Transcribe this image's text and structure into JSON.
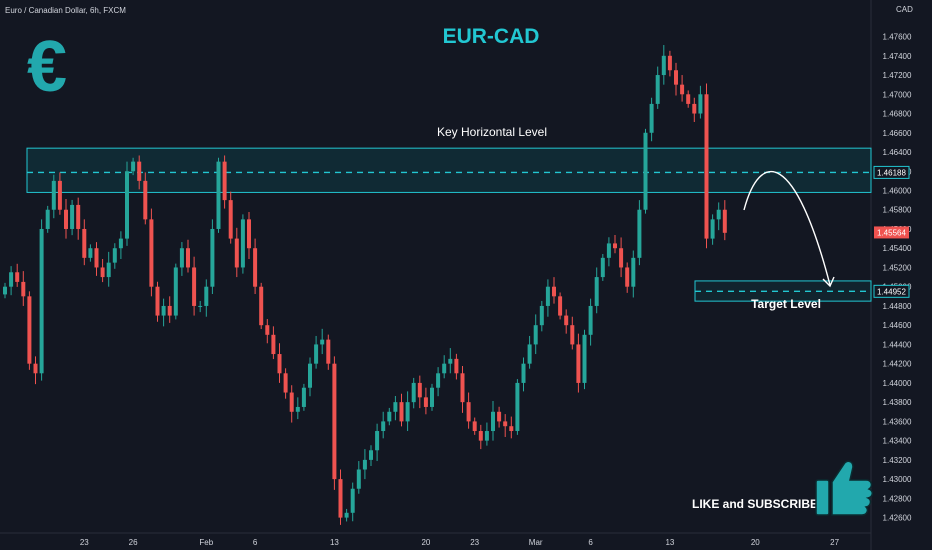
{
  "symbol_header": "Euro / Canadian Dollar, 6h, FXCM",
  "title": "EUR-CAD",
  "currency_label": "CAD",
  "logo_glyph": "€",
  "logo_icon": "euro-icon",
  "thumb_icon": "thumbs-up-icon",
  "cta_text": "LIKE and SUBSCRIBE",
  "colors": {
    "background": "#131722",
    "up": "#26a69a",
    "down": "#ef5350",
    "accent": "#22c7d2",
    "zone_fill": "#0f3b44"
  },
  "annotations": {
    "key_level_label": "Key Horizontal Level",
    "target_label": "Target Level",
    "key_level_price": 1.46188,
    "key_level_price_text": "1.46188",
    "key_zone": [
      1.4598,
      1.4644
    ],
    "target_price": 1.44952,
    "target_price_text": "1.44952",
    "target_zone": [
      1.4485,
      1.4506
    ],
    "current_price": 1.45564,
    "current_price_text": "1.45564"
  },
  "chart_data": {
    "type": "candlestick",
    "title": "EUR-CAD",
    "ylabel": "CAD",
    "ylim": [
      1.4244,
      1.4798
    ],
    "y_ticks": [
      "1.47600",
      "1.47400",
      "1.47200",
      "1.47000",
      "1.46800",
      "1.46600",
      "1.46400",
      "1.46200",
      "1.46000",
      "1.45800",
      "1.45600",
      "1.45400",
      "1.45200",
      "1.45000",
      "1.44800",
      "1.44600",
      "1.44400",
      "1.44200",
      "1.44000",
      "1.43800",
      "1.43600",
      "1.43400",
      "1.43200",
      "1.43000",
      "1.42800",
      "1.42600"
    ],
    "x_ticks": [
      "23",
      "26",
      "Feb",
      "6",
      "13",
      "20",
      "23",
      "Mar",
      "6",
      "13",
      "20",
      "27"
    ],
    "x_tick_index": [
      13,
      21,
      33,
      41,
      54,
      69,
      77,
      87,
      96,
      109,
      123,
      136
    ],
    "bars_shown": 119,
    "grid": false,
    "close_series": [
      1.45,
      1.4515,
      1.4505,
      1.449,
      1.442,
      1.441,
      1.456,
      1.458,
      1.461,
      1.458,
      1.456,
      1.4585,
      1.456,
      1.453,
      1.454,
      1.452,
      1.451,
      1.4525,
      1.454,
      1.455,
      1.462,
      1.463,
      1.461,
      1.457,
      1.45,
      1.447,
      1.448,
      1.447,
      1.452,
      1.454,
      1.452,
      1.448,
      1.448,
      1.45,
      1.456,
      1.463,
      1.459,
      1.455,
      1.452,
      1.457,
      1.454,
      1.45,
      1.446,
      1.445,
      1.443,
      1.441,
      1.439,
      1.437,
      1.4375,
      1.4395,
      1.442,
      1.444,
      1.4445,
      1.442,
      1.43,
      1.426,
      1.4265,
      1.429,
      1.431,
      1.432,
      1.433,
      1.435,
      1.436,
      1.437,
      1.438,
      1.436,
      1.438,
      1.44,
      1.4385,
      1.4375,
      1.4395,
      1.441,
      1.442,
      1.4425,
      1.441,
      1.438,
      1.436,
      1.435,
      1.434,
      1.435,
      1.437,
      1.436,
      1.4355,
      1.435,
      1.44,
      1.442,
      1.444,
      1.446,
      1.448,
      1.45,
      1.449,
      1.447,
      1.446,
      1.444,
      1.44,
      1.445,
      1.448,
      1.451,
      1.453,
      1.4545,
      1.454,
      1.452,
      1.45,
      1.453,
      1.458,
      1.466,
      1.469,
      1.472,
      1.474,
      1.4725,
      1.471,
      1.47,
      1.469,
      1.468,
      1.47,
      1.455,
      1.457,
      1.458,
      1.4556
    ],
    "series": [
      {
        "name": "Euro / Canadian Dollar, 6h, FXCM"
      }
    ]
  }
}
